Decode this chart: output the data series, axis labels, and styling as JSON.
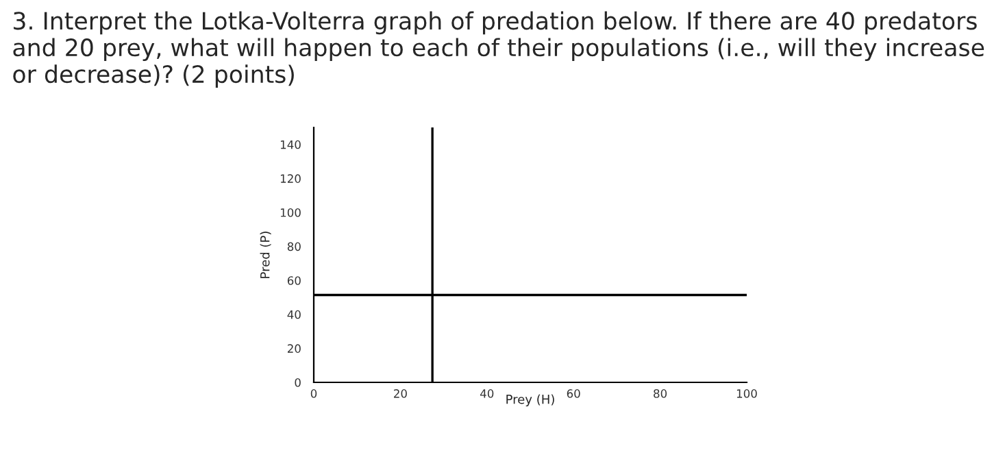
{
  "chart_data": {
    "type": "line",
    "title": "3. Interpret the Lotka-Volterra graph of predation below. If there are 40 predators and 20 prey, what will happen to each of their populations (i.e., will they increase or decrease)? (2 points)",
    "xlabel": "Prey (H)",
    "ylabel": "Pred (P)",
    "series": [
      {
        "x": [
          27.4,
          27.4
        ],
        "values": [
          0,
          150
        ],
        "color": "#000000"
      },
      {
        "x": [
          0,
          100
        ],
        "values": [
          51.4,
          51.4
        ],
        "color": "#000000"
      }
    ],
    "xlim": [
      0,
      100
    ],
    "xticks": [
      0,
      20,
      40,
      60,
      80,
      100
    ],
    "ylim": [
      0,
      150
    ],
    "yticks": [
      0,
      20,
      40,
      60,
      80,
      100,
      120,
      140
    ],
    "grid": false,
    "legend": false,
    "marker": "none",
    "line_style": "solid"
  }
}
